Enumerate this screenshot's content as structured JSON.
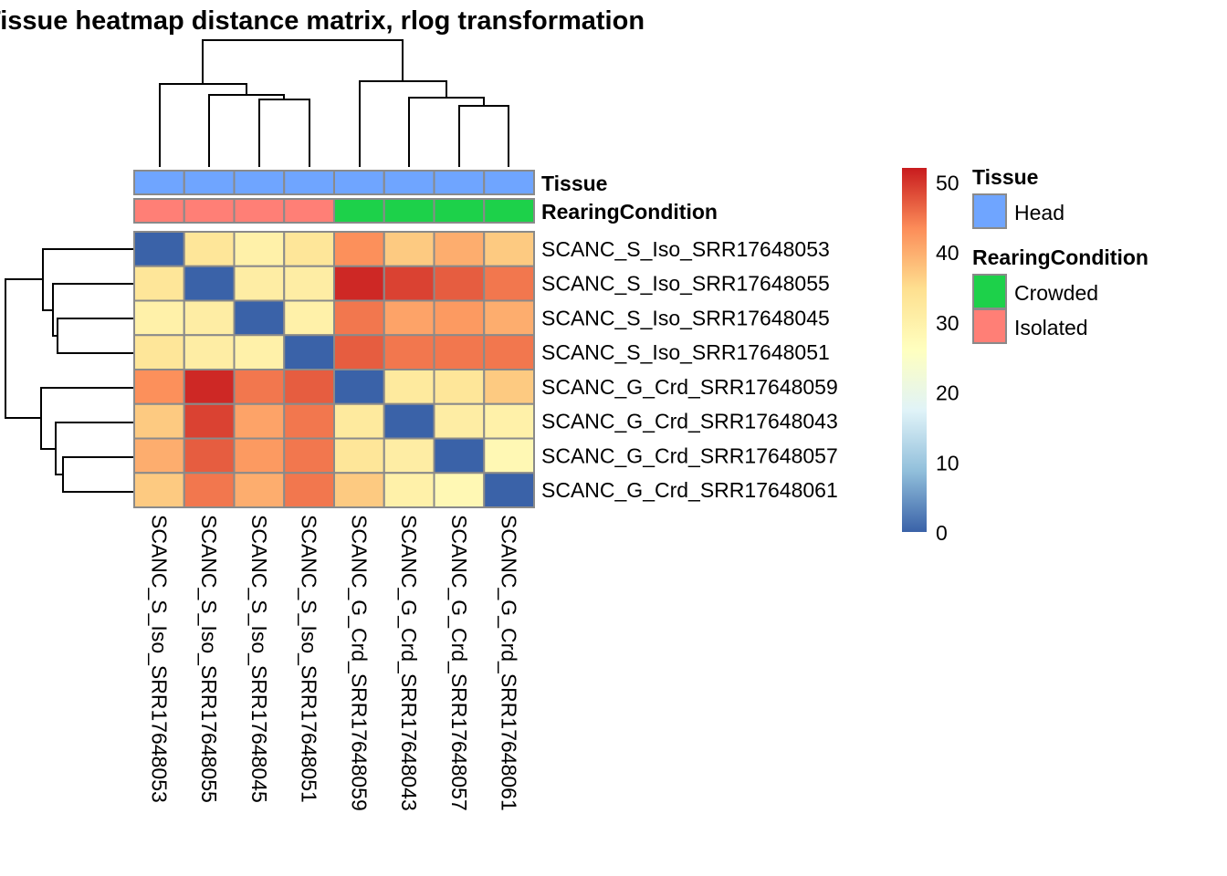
{
  "chart_data": {
    "type": "heatmap",
    "title": "Tissue heatmap distance matrix, rlog transformation",
    "rows": [
      "SCANC_S_Iso_SRR17648053",
      "SCANC_S_Iso_SRR17648055",
      "SCANC_S_Iso_SRR17648045",
      "SCANC_S_Iso_SRR17648051",
      "SCANC_G_Crd_SRR17648059",
      "SCANC_G_Crd_SRR17648043",
      "SCANC_G_Crd_SRR17648057",
      "SCANC_G_Crd_SRR17648061"
    ],
    "columns": [
      "SCANC_S_Iso_SRR17648053",
      "SCANC_S_Iso_SRR17648055",
      "SCANC_S_Iso_SRR17648045",
      "SCANC_S_Iso_SRR17648051",
      "SCANC_G_Crd_SRR17648059",
      "SCANC_G_Crd_SRR17648043",
      "SCANC_G_Crd_SRR17648057",
      "SCANC_G_Crd_SRR17648061"
    ],
    "values": [
      [
        0,
        33,
        30,
        33,
        43,
        37,
        40,
        37
      ],
      [
        33,
        0,
        31,
        31,
        51,
        49,
        47,
        45
      ],
      [
        30,
        31,
        0,
        30,
        45,
        41,
        42,
        40
      ],
      [
        33,
        31,
        30,
        0,
        47,
        45,
        45,
        45
      ],
      [
        43,
        51,
        45,
        47,
        0,
        32,
        33,
        37
      ],
      [
        37,
        49,
        41,
        45,
        32,
        0,
        31,
        30
      ],
      [
        40,
        47,
        42,
        45,
        33,
        31,
        0,
        28
      ],
      [
        37,
        45,
        40,
        45,
        37,
        30,
        28,
        0
      ]
    ],
    "color_scale": {
      "range": [
        0,
        52
      ],
      "ticks": [
        "0",
        "10",
        "20",
        "30",
        "40",
        "50"
      ],
      "colors": [
        "#3A62A8",
        "#91BFDB",
        "#E0F3F8",
        "#FFFFBF",
        "#FEE090",
        "#FC8D59",
        "#C81B1E"
      ]
    },
    "annotations": {
      "tracks": [
        {
          "name": "Tissue",
          "values": [
            "Head",
            "Head",
            "Head",
            "Head",
            "Head",
            "Head",
            "Head",
            "Head"
          ]
        },
        {
          "name": "RearingCondition",
          "values": [
            "Isolated",
            "Isolated",
            "Isolated",
            "Isolated",
            "Crowded",
            "Crowded",
            "Crowded",
            "Crowded"
          ]
        }
      ],
      "legend": [
        {
          "title": "Tissue",
          "items": [
            {
              "label": "Head",
              "color": "#6FA5FF"
            }
          ]
        },
        {
          "title": "RearingCondition",
          "items": [
            {
              "label": "Crowded",
              "color": "#1DD14A"
            },
            {
              "label": "Isolated",
              "color": "#FF7F76"
            }
          ]
        }
      ]
    },
    "dendrogram_rows": true,
    "dendrogram_columns": true
  }
}
